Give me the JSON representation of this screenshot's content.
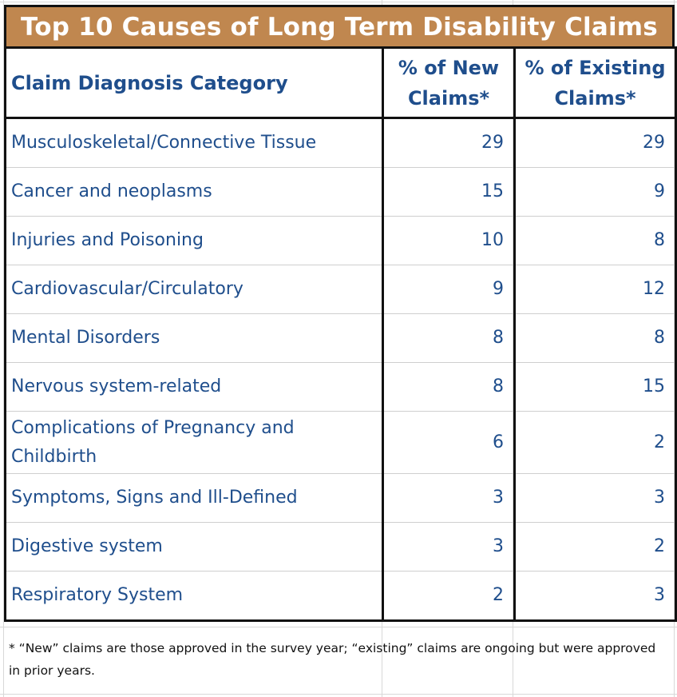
{
  "chart_data": {
    "type": "table",
    "title": "Top 10 Causes of Long Term Disability Claims",
    "columns": [
      "Claim Diagnosis Category",
      "% of New Claims*",
      "% of Existing Claims*"
    ],
    "rows": [
      {
        "category": "Musculoskeletal/Connective Tissue",
        "new_claims": 29,
        "existing_claims": 29
      },
      {
        "category": "Cancer and neoplasms",
        "new_claims": 15,
        "existing_claims": 9
      },
      {
        "category": "Injuries and Poisoning",
        "new_claims": 10,
        "existing_claims": 8
      },
      {
        "category": "Cardiovascular/Circulatory",
        "new_claims": 9,
        "existing_claims": 12
      },
      {
        "category": "Mental Disorders",
        "new_claims": 8,
        "existing_claims": 8
      },
      {
        "category": "Nervous system-related",
        "new_claims": 8,
        "existing_claims": 15
      },
      {
        "category": "Complications of Pregnancy and Childbirth",
        "new_claims": 6,
        "existing_claims": 2
      },
      {
        "category": "Symptoms, Signs and Ill-Defined",
        "new_claims": 3,
        "existing_claims": 3
      },
      {
        "category": "Digestive system",
        "new_claims": 3,
        "existing_claims": 2
      },
      {
        "category": "Respiratory System",
        "new_claims": 2,
        "existing_claims": 3
      }
    ],
    "footnote": "* “New” claims are those approved in the survey year; “existing” claims are ongoing but were approved in prior years."
  },
  "colors": {
    "title_background": "#c0874f",
    "title_text": "#ffffff",
    "table_text": "#1f4e8c",
    "border": "#111111",
    "footnote_text": "#111111"
  }
}
